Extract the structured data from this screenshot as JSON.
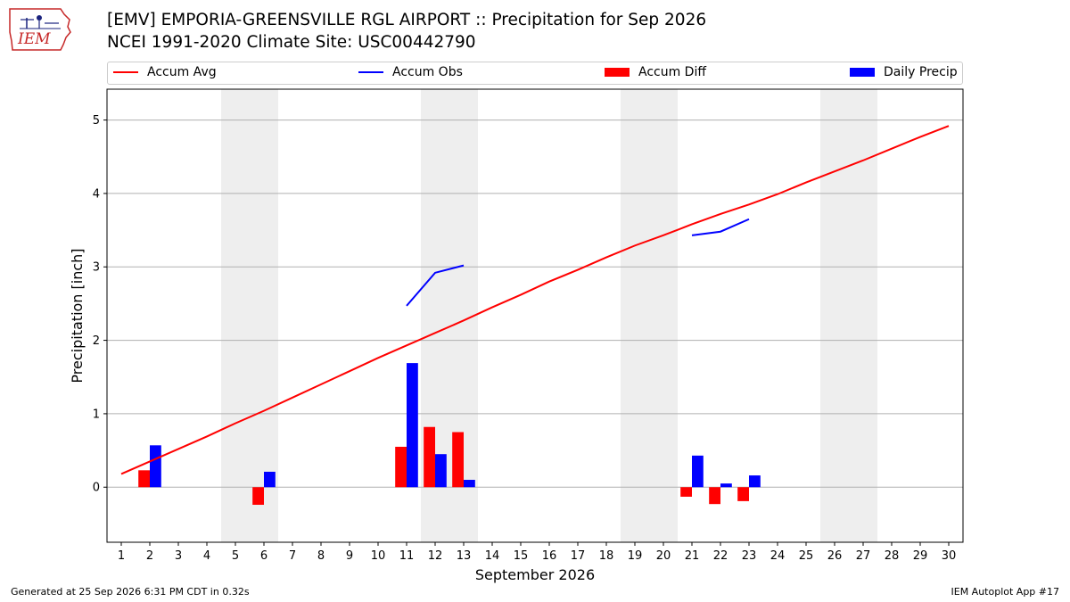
{
  "header": {
    "title_line1": "[EMV] EMPORIA-GREENSVILLE RGL AIRPORT :: Precipitation for Sep 2026",
    "title_line2": "NCEI 1991-2020 Climate Site: USC00442790",
    "logo_text": "IEM"
  },
  "legend": {
    "items": [
      {
        "label": "Accum Avg",
        "kind": "line",
        "color": "#ff0000"
      },
      {
        "label": "Accum Obs",
        "kind": "line",
        "color": "#0000ff"
      },
      {
        "label": "Accum Diff",
        "kind": "bar",
        "color": "#ff0000"
      },
      {
        "label": "Daily Precip",
        "kind": "bar",
        "color": "#0000ff"
      }
    ]
  },
  "footer": {
    "left": "Generated at 25 Sep 2026 6:31 PM CDT in 0.32s",
    "right": "IEM Autoplot App #17"
  },
  "chart_data": {
    "type": "bar",
    "title": "[EMV] EMPORIA-GREENSVILLE RGL AIRPORT :: Precipitation for Sep 2026",
    "xlabel": "September 2026",
    "ylabel": "Precipitation [inch]",
    "xlim": [
      0.5,
      30.5
    ],
    "ylim": [
      -0.75,
      5.42
    ],
    "x_ticks": [
      1,
      2,
      3,
      4,
      5,
      6,
      7,
      8,
      9,
      10,
      11,
      12,
      13,
      14,
      15,
      16,
      17,
      18,
      19,
      20,
      21,
      22,
      23,
      24,
      25,
      26,
      27,
      28,
      29,
      30
    ],
    "y_ticks": [
      0,
      1,
      2,
      3,
      4,
      5
    ],
    "grid": "horizontal",
    "legend_position": "top",
    "weekend_shading": [
      [
        4.5,
        6.5
      ],
      [
        11.5,
        13.5
      ],
      [
        18.5,
        20.5
      ],
      [
        25.5,
        27.5
      ]
    ],
    "colors": {
      "avg": "#ff0000",
      "obs": "#0000ff",
      "diff": "#ff0000",
      "daily": "#0000ff",
      "shade": "#eeeeee",
      "grid": "#b0b0b0"
    },
    "accum_avg": {
      "name": "Accum Avg",
      "x": [
        1,
        2,
        3,
        4,
        5,
        6,
        7,
        8,
        9,
        10,
        11,
        12,
        13,
        14,
        15,
        16,
        17,
        18,
        19,
        20,
        21,
        22,
        23,
        24,
        25,
        26,
        27,
        28,
        29,
        30
      ],
      "y": [
        0.18,
        0.35,
        0.52,
        0.69,
        0.87,
        1.04,
        1.22,
        1.4,
        1.58,
        1.76,
        1.93,
        2.1,
        2.27,
        2.45,
        2.62,
        2.8,
        2.96,
        3.13,
        3.29,
        3.43,
        3.58,
        3.72,
        3.85,
        3.99,
        4.15,
        4.3,
        4.45,
        4.61,
        4.77,
        4.92
      ]
    },
    "accum_obs": {
      "name": "Accum Obs",
      "segments": [
        {
          "x": [
            11,
            12,
            13
          ],
          "y": [
            2.47,
            2.92,
            3.02
          ]
        },
        {
          "x": [
            21,
            22,
            23
          ],
          "y": [
            3.43,
            3.48,
            3.65
          ]
        }
      ]
    },
    "accum_diff": {
      "name": "Accum Diff",
      "x": [
        2,
        6,
        11,
        12,
        13,
        21,
        22,
        23
      ],
      "values": [
        0.23,
        -0.24,
        0.55,
        0.82,
        0.75,
        -0.13,
        -0.23,
        -0.19
      ]
    },
    "daily_precip": {
      "name": "Daily Precip",
      "x": [
        2,
        6,
        11,
        12,
        13,
        21,
        22,
        23
      ],
      "values": [
        0.57,
        0.21,
        1.69,
        0.45,
        0.1,
        0.43,
        0.05,
        0.16
      ]
    }
  }
}
